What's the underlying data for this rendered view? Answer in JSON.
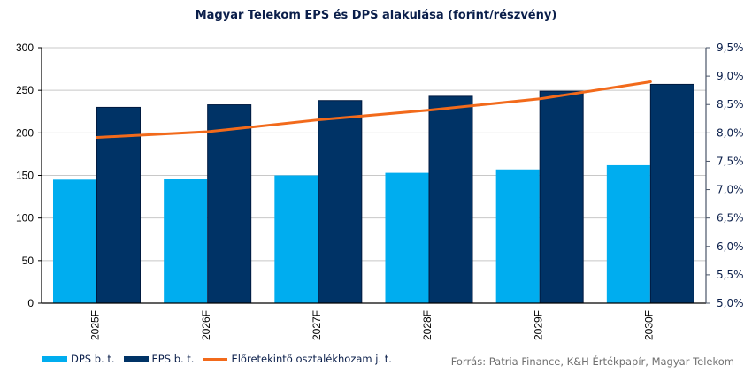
{
  "chart_data": {
    "type": "bar",
    "title": "Magyar Telekom EPS és DPS alakulása (forint/részvény)",
    "categories": [
      "2025F",
      "2026F",
      "2027F",
      "2028F",
      "2029F",
      "2030F"
    ],
    "series": [
      {
        "name": "DPS b. t.",
        "type": "bar",
        "axis": "left",
        "color": "#00adef",
        "values": [
          145,
          146,
          150,
          153,
          157,
          162
        ]
      },
      {
        "name": "EPS b. t.",
        "type": "bar",
        "axis": "left",
        "color": "#003366",
        "values": [
          230,
          233,
          238,
          243,
          249,
          257
        ]
      },
      {
        "name": "Előretekintő osztalékhozam j. t.",
        "type": "line",
        "axis": "right",
        "color": "#f26a1b",
        "values": [
          7.92,
          8.02,
          8.23,
          8.4,
          8.6,
          8.9
        ]
      }
    ],
    "ylim_left": [
      0,
      300
    ],
    "yticks_left": [
      "0",
      "50",
      "100",
      "150",
      "200",
      "250",
      "300"
    ],
    "ylim_right": [
      5.0,
      9.5
    ],
    "yticks_right": [
      "5,0%",
      "5,5%",
      "6,0%",
      "6,5%",
      "7,0%",
      "7,5%",
      "8,0%",
      "8,5%",
      "9,0%",
      "9,5%"
    ],
    "grid": true,
    "legend_position": "bottom-left",
    "source": "Forrás: Patria Finance, K&H Értékpapír, Magyar Telekom"
  }
}
